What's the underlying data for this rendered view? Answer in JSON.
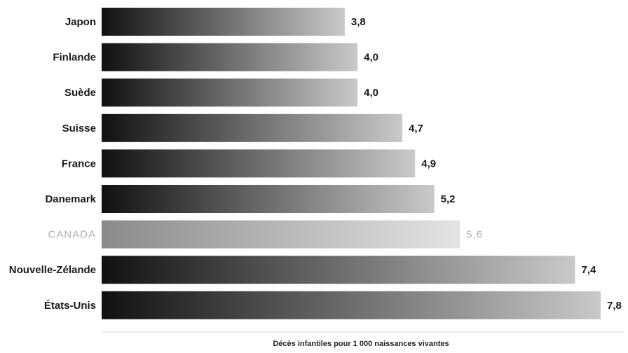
{
  "chart_data": {
    "type": "bar",
    "orientation": "horizontal",
    "categories": [
      "Japon",
      "Finlande",
      "Suède",
      "Suisse",
      "France",
      "Danemark",
      "CANADA",
      "Nouvelle-Zélande",
      "États-Unis"
    ],
    "values": [
      3.8,
      4.0,
      4.0,
      4.7,
      4.9,
      5.2,
      5.6,
      7.4,
      7.8
    ],
    "value_labels": [
      "3,8",
      "4,0",
      "4,0",
      "4,7",
      "4,9",
      "5,2",
      "5,6",
      "7,4",
      "7,8"
    ],
    "highlight_category": "CANADA",
    "xlabel": "Décès infantiles pour 1 000 naissances vivantes",
    "xlim": [
      0,
      7.8
    ],
    "grid": false,
    "legend": "none"
  },
  "colors": {
    "bar_dark": "#111111",
    "bar_light": "#c9c9c9",
    "highlight_dark": "#8a8a8a",
    "highlight_light": "#e4e4e4",
    "text": "#1a1a1a",
    "highlight_text": "#b0b0b0",
    "axis_line": "#e6e6e6"
  }
}
